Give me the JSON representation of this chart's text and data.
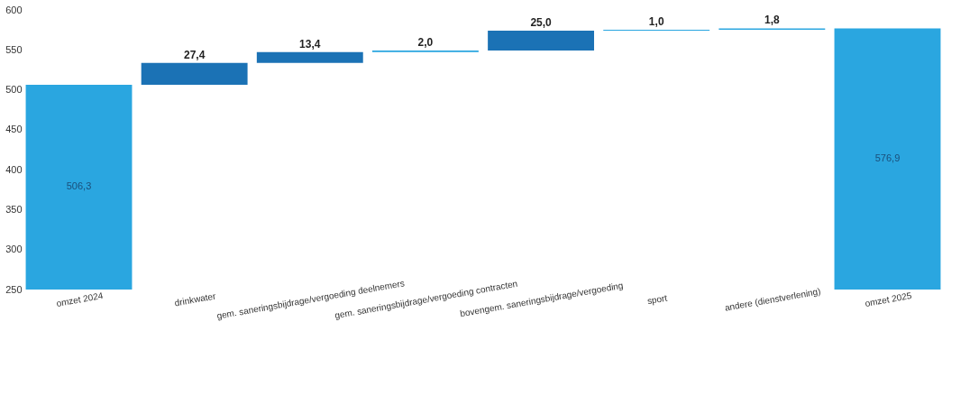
{
  "chart_data": {
    "type": "bar",
    "categories": [
      "omzet 2024",
      "drinkwater",
      "gem. saneringsbijdrage/vergoeding deelnemers",
      "gem. saneringsbijdrage/vergoeding contracten",
      "bovengem. saneringsbijdrage/vergoeding",
      "sport",
      "andere (dienstverlening)",
      "omzet 2025"
    ],
    "values": [
      506.3,
      27.4,
      13.4,
      2.0,
      25.0,
      1.0,
      1.8,
      576.9
    ],
    "base": [
      0,
      506.3,
      533.7,
      547.1,
      549.1,
      574.1,
      575.1,
      0
    ],
    "colors": [
      "#2aa6e0",
      "#1b72b5",
      "#1b72b5",
      "#2aa6e0",
      "#1b72b5",
      "#2aa6e0",
      "#2aa6e0",
      "#2aa6e0"
    ],
    "value_labels": [
      "506,3",
      "27,4",
      "13,4",
      "2,0",
      "25,0",
      "1,0",
      "1,8",
      "576,9"
    ],
    "ylim": [
      250,
      600
    ],
    "yticks": [
      250,
      300,
      350,
      400,
      450,
      500,
      550,
      600
    ],
    "grid": false
  }
}
